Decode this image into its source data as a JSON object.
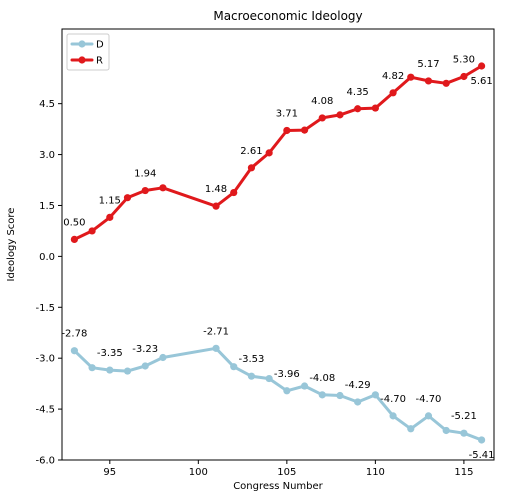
{
  "chart_data": {
    "type": "line",
    "title": "Macroeconomic Ideology",
    "xlabel": "Congress Number",
    "ylabel": "Ideology Score",
    "xlim": [
      92.3,
      116.7
    ],
    "ylim": [
      -6.0,
      6.7
    ],
    "xticks": [
      95,
      100,
      105,
      110,
      115
    ],
    "yticks": [
      -6.0,
      -4.5,
      -3.0,
      -1.5,
      0.0,
      1.5,
      3.0,
      4.5
    ],
    "ytick_labels": [
      "-6.0",
      "-4.5",
      "-3.0",
      "-1.5",
      "0.0",
      "1.5",
      "3.0",
      "4.5"
    ],
    "grid": false,
    "legend_position": "top-left",
    "series": [
      {
        "name": "D",
        "color": "#98c6d8",
        "x": [
          93,
          94,
          95,
          96,
          97,
          98,
          101,
          102,
          103,
          104,
          105,
          106,
          107,
          108,
          109,
          110,
          111,
          112,
          113,
          114,
          115,
          116
        ],
        "y": [
          -2.78,
          -3.28,
          -3.35,
          -3.38,
          -3.23,
          -2.98,
          -2.71,
          -3.25,
          -3.53,
          -3.6,
          -3.96,
          -3.82,
          -4.08,
          -4.1,
          -4.29,
          -4.08,
          -4.7,
          -5.08,
          -4.7,
          -5.13,
          -5.21,
          -5.41
        ],
        "labels": [
          {
            "x": 93,
            "y": -2.78,
            "text": "-2.78",
            "pos": "above"
          },
          {
            "x": 95,
            "y": -3.35,
            "text": "-3.35",
            "pos": "above"
          },
          {
            "x": 97,
            "y": -3.23,
            "text": "-3.23",
            "pos": "above"
          },
          {
            "x": 101,
            "y": -2.71,
            "text": "-2.71",
            "pos": "above"
          },
          {
            "x": 103,
            "y": -3.53,
            "text": "-3.53",
            "pos": "above"
          },
          {
            "x": 105,
            "y": -3.96,
            "text": "-3.96",
            "pos": "above"
          },
          {
            "x": 107,
            "y": -4.08,
            "text": "-4.08",
            "pos": "above"
          },
          {
            "x": 109,
            "y": -4.29,
            "text": "-4.29",
            "pos": "above"
          },
          {
            "x": 111,
            "y": -4.7,
            "text": "-4.70",
            "pos": "above"
          },
          {
            "x": 113,
            "y": -4.7,
            "text": "-4.70",
            "pos": "above"
          },
          {
            "x": 115,
            "y": -5.21,
            "text": "-5.21",
            "pos": "above"
          },
          {
            "x": 116,
            "y": -5.41,
            "text": "-5.41",
            "pos": "below"
          }
        ]
      },
      {
        "name": "R",
        "color": "#e0191c",
        "x": [
          93,
          94,
          95,
          96,
          97,
          98,
          101,
          102,
          103,
          104,
          105,
          106,
          107,
          108,
          109,
          110,
          111,
          112,
          113,
          114,
          115,
          116
        ],
        "y": [
          0.5,
          0.75,
          1.15,
          1.73,
          1.94,
          2.02,
          1.48,
          1.88,
          2.61,
          3.05,
          3.71,
          3.72,
          4.08,
          4.17,
          4.35,
          4.37,
          4.82,
          5.28,
          5.17,
          5.1,
          5.3,
          5.61
        ],
        "labels": [
          {
            "x": 93,
            "y": 0.5,
            "text": "0.50",
            "pos": "above"
          },
          {
            "x": 95,
            "y": 1.15,
            "text": "1.15",
            "pos": "above"
          },
          {
            "x": 97,
            "y": 1.94,
            "text": "1.94",
            "pos": "above"
          },
          {
            "x": 101,
            "y": 1.48,
            "text": "1.48",
            "pos": "above"
          },
          {
            "x": 103,
            "y": 2.61,
            "text": "2.61",
            "pos": "above"
          },
          {
            "x": 105,
            "y": 3.71,
            "text": "3.71",
            "pos": "above"
          },
          {
            "x": 107,
            "y": 4.08,
            "text": "4.08",
            "pos": "above"
          },
          {
            "x": 109,
            "y": 4.35,
            "text": "4.35",
            "pos": "above"
          },
          {
            "x": 111,
            "y": 4.82,
            "text": "4.82",
            "pos": "above"
          },
          {
            "x": 113,
            "y": 5.17,
            "text": "5.17",
            "pos": "above"
          },
          {
            "x": 115,
            "y": 5.3,
            "text": "5.30",
            "pos": "above"
          },
          {
            "x": 116,
            "y": 5.61,
            "text": "5.61",
            "pos": "below"
          }
        ]
      }
    ]
  }
}
